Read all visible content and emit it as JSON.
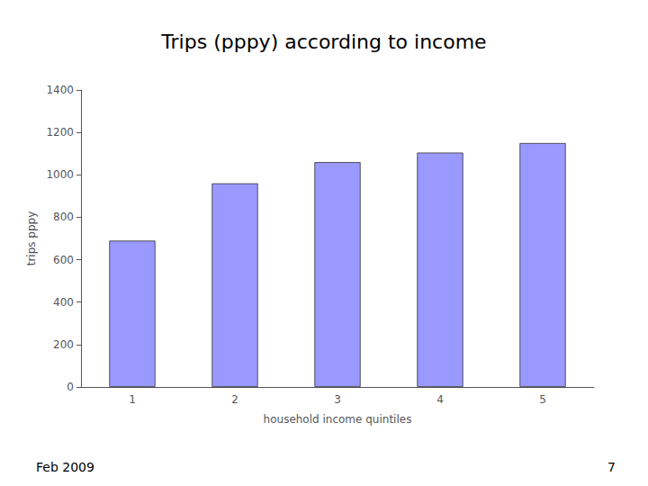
{
  "chart_data": {
    "type": "bar",
    "title": "Trips (pppy) according to income",
    "categories": [
      "1",
      "2",
      "3",
      "4",
      "5"
    ],
    "values": [
      690,
      960,
      1060,
      1105,
      1150
    ],
    "color": "#9999ff",
    "xlabel": "household income quintiles",
    "ylabel": "trips pppy",
    "ylim": [
      0,
      1400
    ],
    "yticks": [
      0,
      200,
      400,
      600,
      800,
      1000,
      1200,
      1400
    ],
    "grid": false,
    "annotations": [
      "Feb 2009",
      "7"
    ]
  }
}
